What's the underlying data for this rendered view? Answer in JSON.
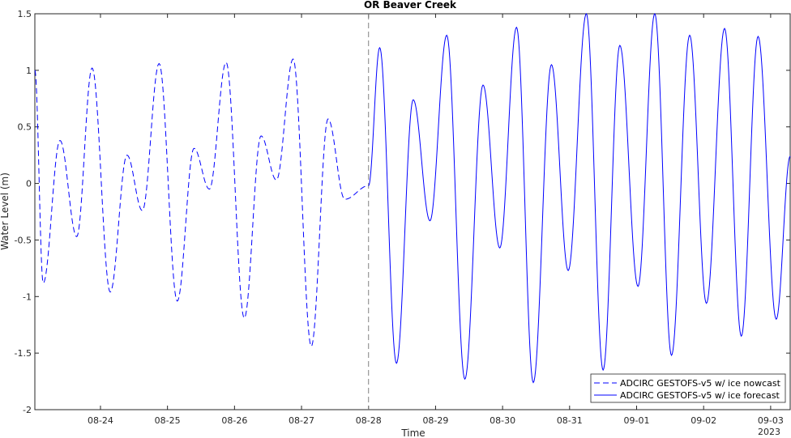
{
  "chart_data": {
    "type": "line",
    "title": "OR Beaver Creek",
    "xlabel": "Time",
    "ylabel": "Water Level (m)",
    "ylim": [
      -2,
      1.5
    ],
    "xlim": [
      "2023-08-23 00:30",
      "2023-09-03 07:00"
    ],
    "yticks": [
      "1.5",
      "1",
      "0.5",
      "0",
      "-0.5",
      "-1",
      "-1.5",
      "-2"
    ],
    "xticks": [
      "08-24",
      "08-25",
      "08-26",
      "08-27",
      "08-28",
      "08-29",
      "08-30",
      "08-31",
      "09-01",
      "09-02",
      "09-03"
    ],
    "year_label": "2023",
    "divider_at": "2023-08-28 00:00",
    "legend_position": "bottom-right",
    "grid": false,
    "series": [
      {
        "name": "ADCIRC GESTOFS-v5 w/ ice nowcast",
        "style": "dashed",
        "color": "#0000ff",
        "points": [
          [
            "2023-08-23 00:30",
            1.0
          ],
          [
            "2023-08-23 03:30",
            -0.88
          ],
          [
            "2023-08-23 09:30",
            0.38
          ],
          [
            "2023-08-23 15:30",
            -0.47
          ],
          [
            "2023-08-23 21:00",
            1.02
          ],
          [
            "2023-08-24 03:30",
            -0.96
          ],
          [
            "2023-08-24 09:30",
            0.25
          ],
          [
            "2023-08-24 15:00",
            -0.24
          ],
          [
            "2023-08-24 21:00",
            1.06
          ],
          [
            "2023-08-25 03:30",
            -1.04
          ],
          [
            "2023-08-25 09:30",
            0.31
          ],
          [
            "2023-08-25 15:00",
            -0.05
          ],
          [
            "2023-08-25 21:00",
            1.07
          ],
          [
            "2023-08-26 03:30",
            -1.19
          ],
          [
            "2023-08-26 09:30",
            0.42
          ],
          [
            "2023-08-26 15:00",
            0.03
          ],
          [
            "2023-08-26 21:00",
            1.1
          ],
          [
            "2023-08-27 03:30",
            -1.44
          ],
          [
            "2023-08-27 09:30",
            0.57
          ],
          [
            "2023-08-27 15:30",
            -0.14
          ],
          [
            "2023-08-28 00:00",
            -0.02
          ]
        ]
      },
      {
        "name": "ADCIRC GESTOFS-v5 w/ ice forecast",
        "style": "solid",
        "color": "#0000ff",
        "points": [
          [
            "2023-08-28 00:00",
            -0.02
          ],
          [
            "2023-08-28 04:00",
            1.2
          ],
          [
            "2023-08-28 10:00",
            -1.59
          ],
          [
            "2023-08-28 16:00",
            0.74
          ],
          [
            "2023-08-28 22:00",
            -0.33
          ],
          [
            "2023-08-29 04:00",
            1.31
          ],
          [
            "2023-08-29 10:30",
            -1.73
          ],
          [
            "2023-08-29 17:00",
            0.87
          ],
          [
            "2023-08-29 23:00",
            -0.57
          ],
          [
            "2023-08-30 05:00",
            1.38
          ],
          [
            "2023-08-30 11:00",
            -1.76
          ],
          [
            "2023-08-30 17:30",
            1.05
          ],
          [
            "2023-08-30 23:30",
            -0.77
          ],
          [
            "2023-08-31 06:00",
            1.5
          ],
          [
            "2023-08-31 12:00",
            -1.65
          ],
          [
            "2023-08-31 18:00",
            1.22
          ],
          [
            "2023-09-01 00:30",
            -0.91
          ],
          [
            "2023-09-01 06:30",
            1.5
          ],
          [
            "2023-09-01 12:30",
            -1.52
          ],
          [
            "2023-09-01 19:00",
            1.31
          ],
          [
            "2023-09-02 01:00",
            -1.06
          ],
          [
            "2023-09-02 07:30",
            1.37
          ],
          [
            "2023-09-02 13:30",
            -1.35
          ],
          [
            "2023-09-02 19:30",
            1.3
          ],
          [
            "2023-09-03 02:00",
            -1.2
          ],
          [
            "2023-09-03 07:00",
            0.24
          ]
        ]
      }
    ]
  }
}
